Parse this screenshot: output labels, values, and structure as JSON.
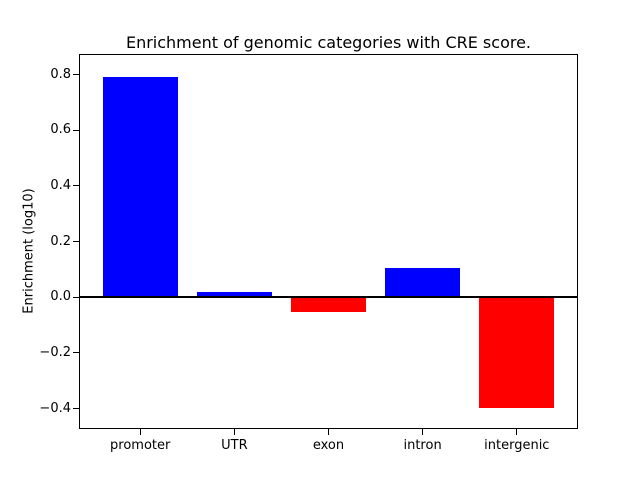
{
  "figure": {
    "background": "#ffffff",
    "frame_color": "#000000"
  },
  "chart_data": {
    "type": "bar",
    "title": "Enrichment of genomic categories with CRE score.",
    "xlabel": "",
    "ylabel": "Enrichment (log10)",
    "categories": [
      "promoter",
      "UTR",
      "exon",
      "intron",
      "intergenic"
    ],
    "values": [
      0.79,
      0.02,
      -0.055,
      0.105,
      -0.4
    ],
    "bar_colors": [
      "#0000ff",
      "#0000ff",
      "#ff0000",
      "#0000ff",
      "#ff0000"
    ],
    "positive_color": "#0000ff",
    "negative_color": "#ff0000",
    "yticks": [
      0.8,
      0.6,
      0.4,
      0.2,
      0.0,
      -0.2,
      -0.4
    ],
    "ylim": [
      -0.47,
      0.87
    ],
    "xlim": [
      -0.64,
      4.64
    ],
    "bar_width": 0.8,
    "zero_line": true,
    "zero_line_color": "#000000",
    "axis_color": "#000000",
    "grid": false,
    "legend": null
  }
}
